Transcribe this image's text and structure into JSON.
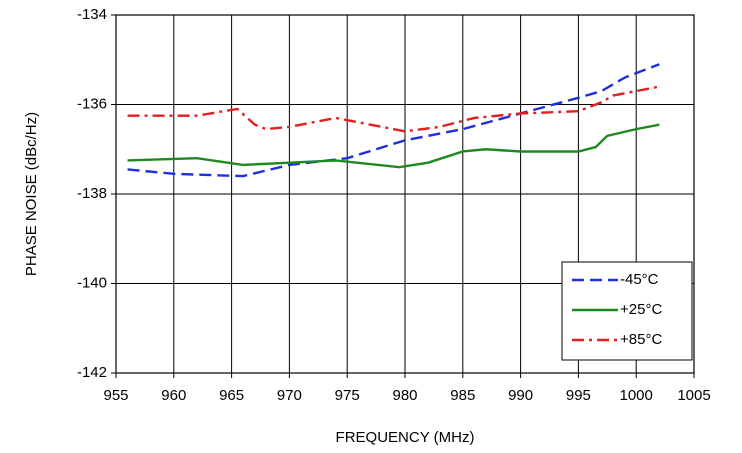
{
  "chart_data": {
    "type": "line",
    "x_label": "FREQUENCY (MHz)",
    "y_label": "PHASE NOISE  (dBc/Hz)",
    "xlim": [
      955,
      1005
    ],
    "xticks": [
      955,
      960,
      965,
      970,
      975,
      980,
      985,
      990,
      995,
      1000,
      1005
    ],
    "ylim": [
      -142,
      -134
    ],
    "yticks": [
      -142,
      -140,
      -138,
      -136,
      -134
    ],
    "grid": true,
    "legend": "lower right",
    "series": [
      {
        "name": "-45°C",
        "color": "#1f2ee0",
        "dash": "12,6",
        "x": [
          956,
          960,
          966,
          970,
          975,
          980,
          985,
          990,
          995,
          997,
          999,
          1002
        ],
        "values": [
          -137.45,
          -137.55,
          -137.6,
          -137.35,
          -137.2,
          -136.8,
          -136.55,
          -136.2,
          -135.85,
          -135.7,
          -135.4,
          -135.1
        ]
      },
      {
        "name": "+25°C",
        "color": "#1e8a1e",
        "dash": "none",
        "x": [
          956,
          962,
          966,
          970,
          974,
          979.5,
          982,
          985,
          987,
          990,
          995,
          996.5,
          997.5,
          1000,
          1002
        ],
        "values": [
          -137.25,
          -137.2,
          -137.35,
          -137.3,
          -137.25,
          -137.4,
          -137.3,
          -137.05,
          -137.0,
          -137.05,
          -137.05,
          -136.95,
          -136.7,
          -136.55,
          -136.45
        ]
      },
      {
        "name": "+85°C",
        "color": "#e41e1e",
        "dash": "12,5,3,5",
        "x": [
          956,
          962,
          965.5,
          967,
          968,
          970,
          974,
          977,
          980,
          983,
          986,
          990,
          995,
          997,
          998,
          1002
        ],
        "values": [
          -136.25,
          -136.25,
          -136.1,
          -136.45,
          -136.55,
          -136.5,
          -136.3,
          -136.45,
          -136.6,
          -136.5,
          -136.3,
          -136.2,
          -136.15,
          -135.95,
          -135.8,
          -135.6
        ]
      }
    ]
  }
}
